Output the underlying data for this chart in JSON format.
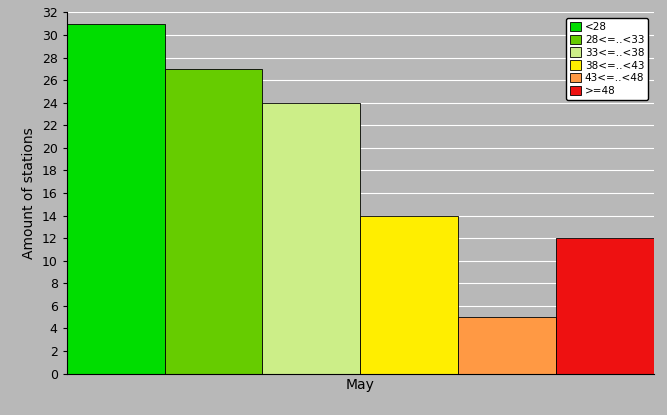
{
  "bars": [
    {
      "value": 31,
      "color": "#00dd00",
      "label": "<28"
    },
    {
      "value": 27,
      "color": "#66cc00",
      "label": "28<=..<33"
    },
    {
      "value": 24,
      "color": "#ccee88",
      "label": "33<=..<38"
    },
    {
      "value": 14,
      "color": "#ffee00",
      "label": "38<=..<43"
    },
    {
      "value": 5,
      "color": "#ff9944",
      "label": "43<=..<48"
    },
    {
      "value": 12,
      "color": "#ee1111",
      "label": ">=48"
    }
  ],
  "xlabel": "May",
  "ylabel": "Amount of stations",
  "ylim": [
    0,
    32
  ],
  "yticks": [
    0,
    2,
    4,
    6,
    8,
    10,
    12,
    14,
    16,
    18,
    20,
    22,
    24,
    26,
    28,
    30,
    32
  ],
  "bg_color": "#b8b8b8",
  "plot_bg_color": "#b8b8b8",
  "grid_color": "#ffffff"
}
